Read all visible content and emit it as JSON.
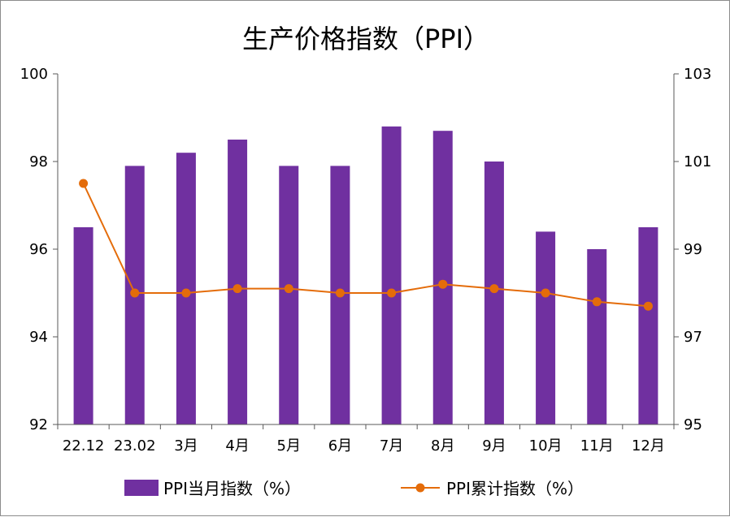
{
  "chart_data": {
    "type": "bar+line",
    "title": "生产价格指数（PPI）",
    "categories": [
      "22.12",
      "23.02",
      "3月",
      "4月",
      "5月",
      "6月",
      "7月",
      "8月",
      "9月",
      "10月",
      "11月",
      "12月"
    ],
    "series": [
      {
        "name": "PPI当月指数（%）",
        "type": "bar",
        "axis": "left",
        "color": "#7030A0",
        "values": [
          96.5,
          97.9,
          98.2,
          98.5,
          97.9,
          97.9,
          98.8,
          98.7,
          98.0,
          96.4,
          96.0,
          96.5
        ]
      },
      {
        "name": "PPI累计指数（%）",
        "type": "line",
        "axis": "right",
        "color": "#E46C0A",
        "values": [
          100.5,
          98.0,
          98.0,
          98.1,
          98.1,
          98.0,
          98.0,
          98.2,
          98.1,
          98.0,
          97.8,
          97.7
        ]
      }
    ],
    "y_left": {
      "min": 92,
      "max": 100,
      "ticks": [
        "92",
        "94",
        "96",
        "98",
        "100"
      ]
    },
    "y_right": {
      "min": 95,
      "max": 103,
      "ticks": [
        "95",
        "97",
        "99",
        "101",
        "103"
      ]
    },
    "grid": false,
    "legend": "bottom"
  }
}
